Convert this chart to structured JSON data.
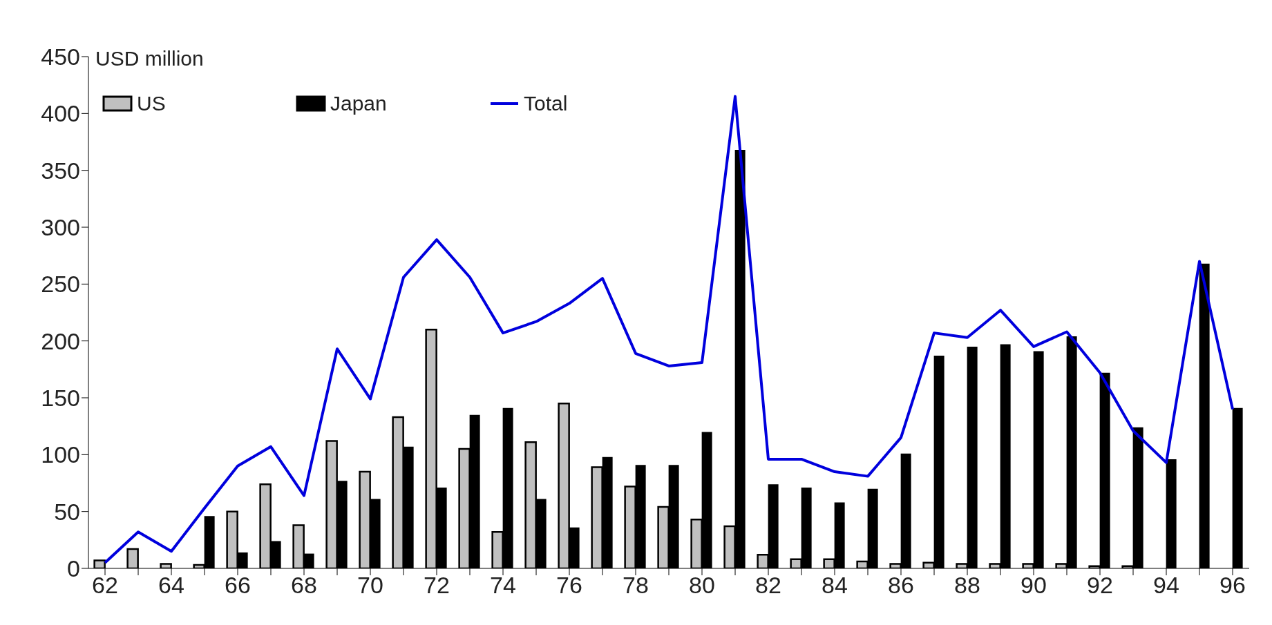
{
  "chart_data": {
    "type": "bar",
    "ylabel": "USD million",
    "categories": [
      "62",
      null,
      "64",
      null,
      "66",
      null,
      "68",
      null,
      "70",
      null,
      "72",
      null,
      "74",
      null,
      "76",
      null,
      "78",
      null,
      "80",
      null,
      "82",
      null,
      "84",
      null,
      "86",
      null,
      "88",
      null,
      "90",
      null,
      "92",
      null,
      "94",
      null,
      "96"
    ],
    "series": [
      {
        "name": "US",
        "color": "#c0c0c0",
        "values": [
          7,
          17,
          4,
          3,
          50,
          74,
          38,
          112,
          85,
          133,
          210,
          105,
          32,
          111,
          145,
          89,
          72,
          54,
          43,
          37,
          12,
          8,
          8,
          6,
          4,
          5,
          4,
          4,
          4,
          4,
          2,
          2,
          0,
          0,
          0
        ]
      },
      {
        "name": "Japan",
        "color": "#000000",
        "values": [
          0,
          0,
          0,
          46,
          14,
          24,
          13,
          77,
          61,
          107,
          71,
          135,
          141,
          61,
          36,
          98,
          91,
          91,
          120,
          368,
          74,
          71,
          58,
          70,
          101,
          187,
          195,
          197,
          191,
          204,
          172,
          124,
          96,
          268,
          141
        ]
      },
      {
        "name": "Total",
        "type": "line",
        "color": "#0000dd",
        "values": [
          5,
          32,
          15,
          53,
          90,
          107,
          64,
          193,
          149,
          256,
          289,
          256,
          207,
          217,
          233,
          255,
          189,
          178,
          181,
          415,
          96,
          96,
          85,
          81,
          115,
          207,
          203,
          227,
          195,
          208,
          172,
          121,
          93,
          270,
          140
        ]
      }
    ],
    "ylim": [
      0,
      450
    ],
    "yticks": [
      0,
      50,
      100,
      150,
      200,
      250,
      300,
      350,
      400,
      450
    ],
    "legend": "top left",
    "marker": "none",
    "line_style": "solid",
    "grid": false
  }
}
